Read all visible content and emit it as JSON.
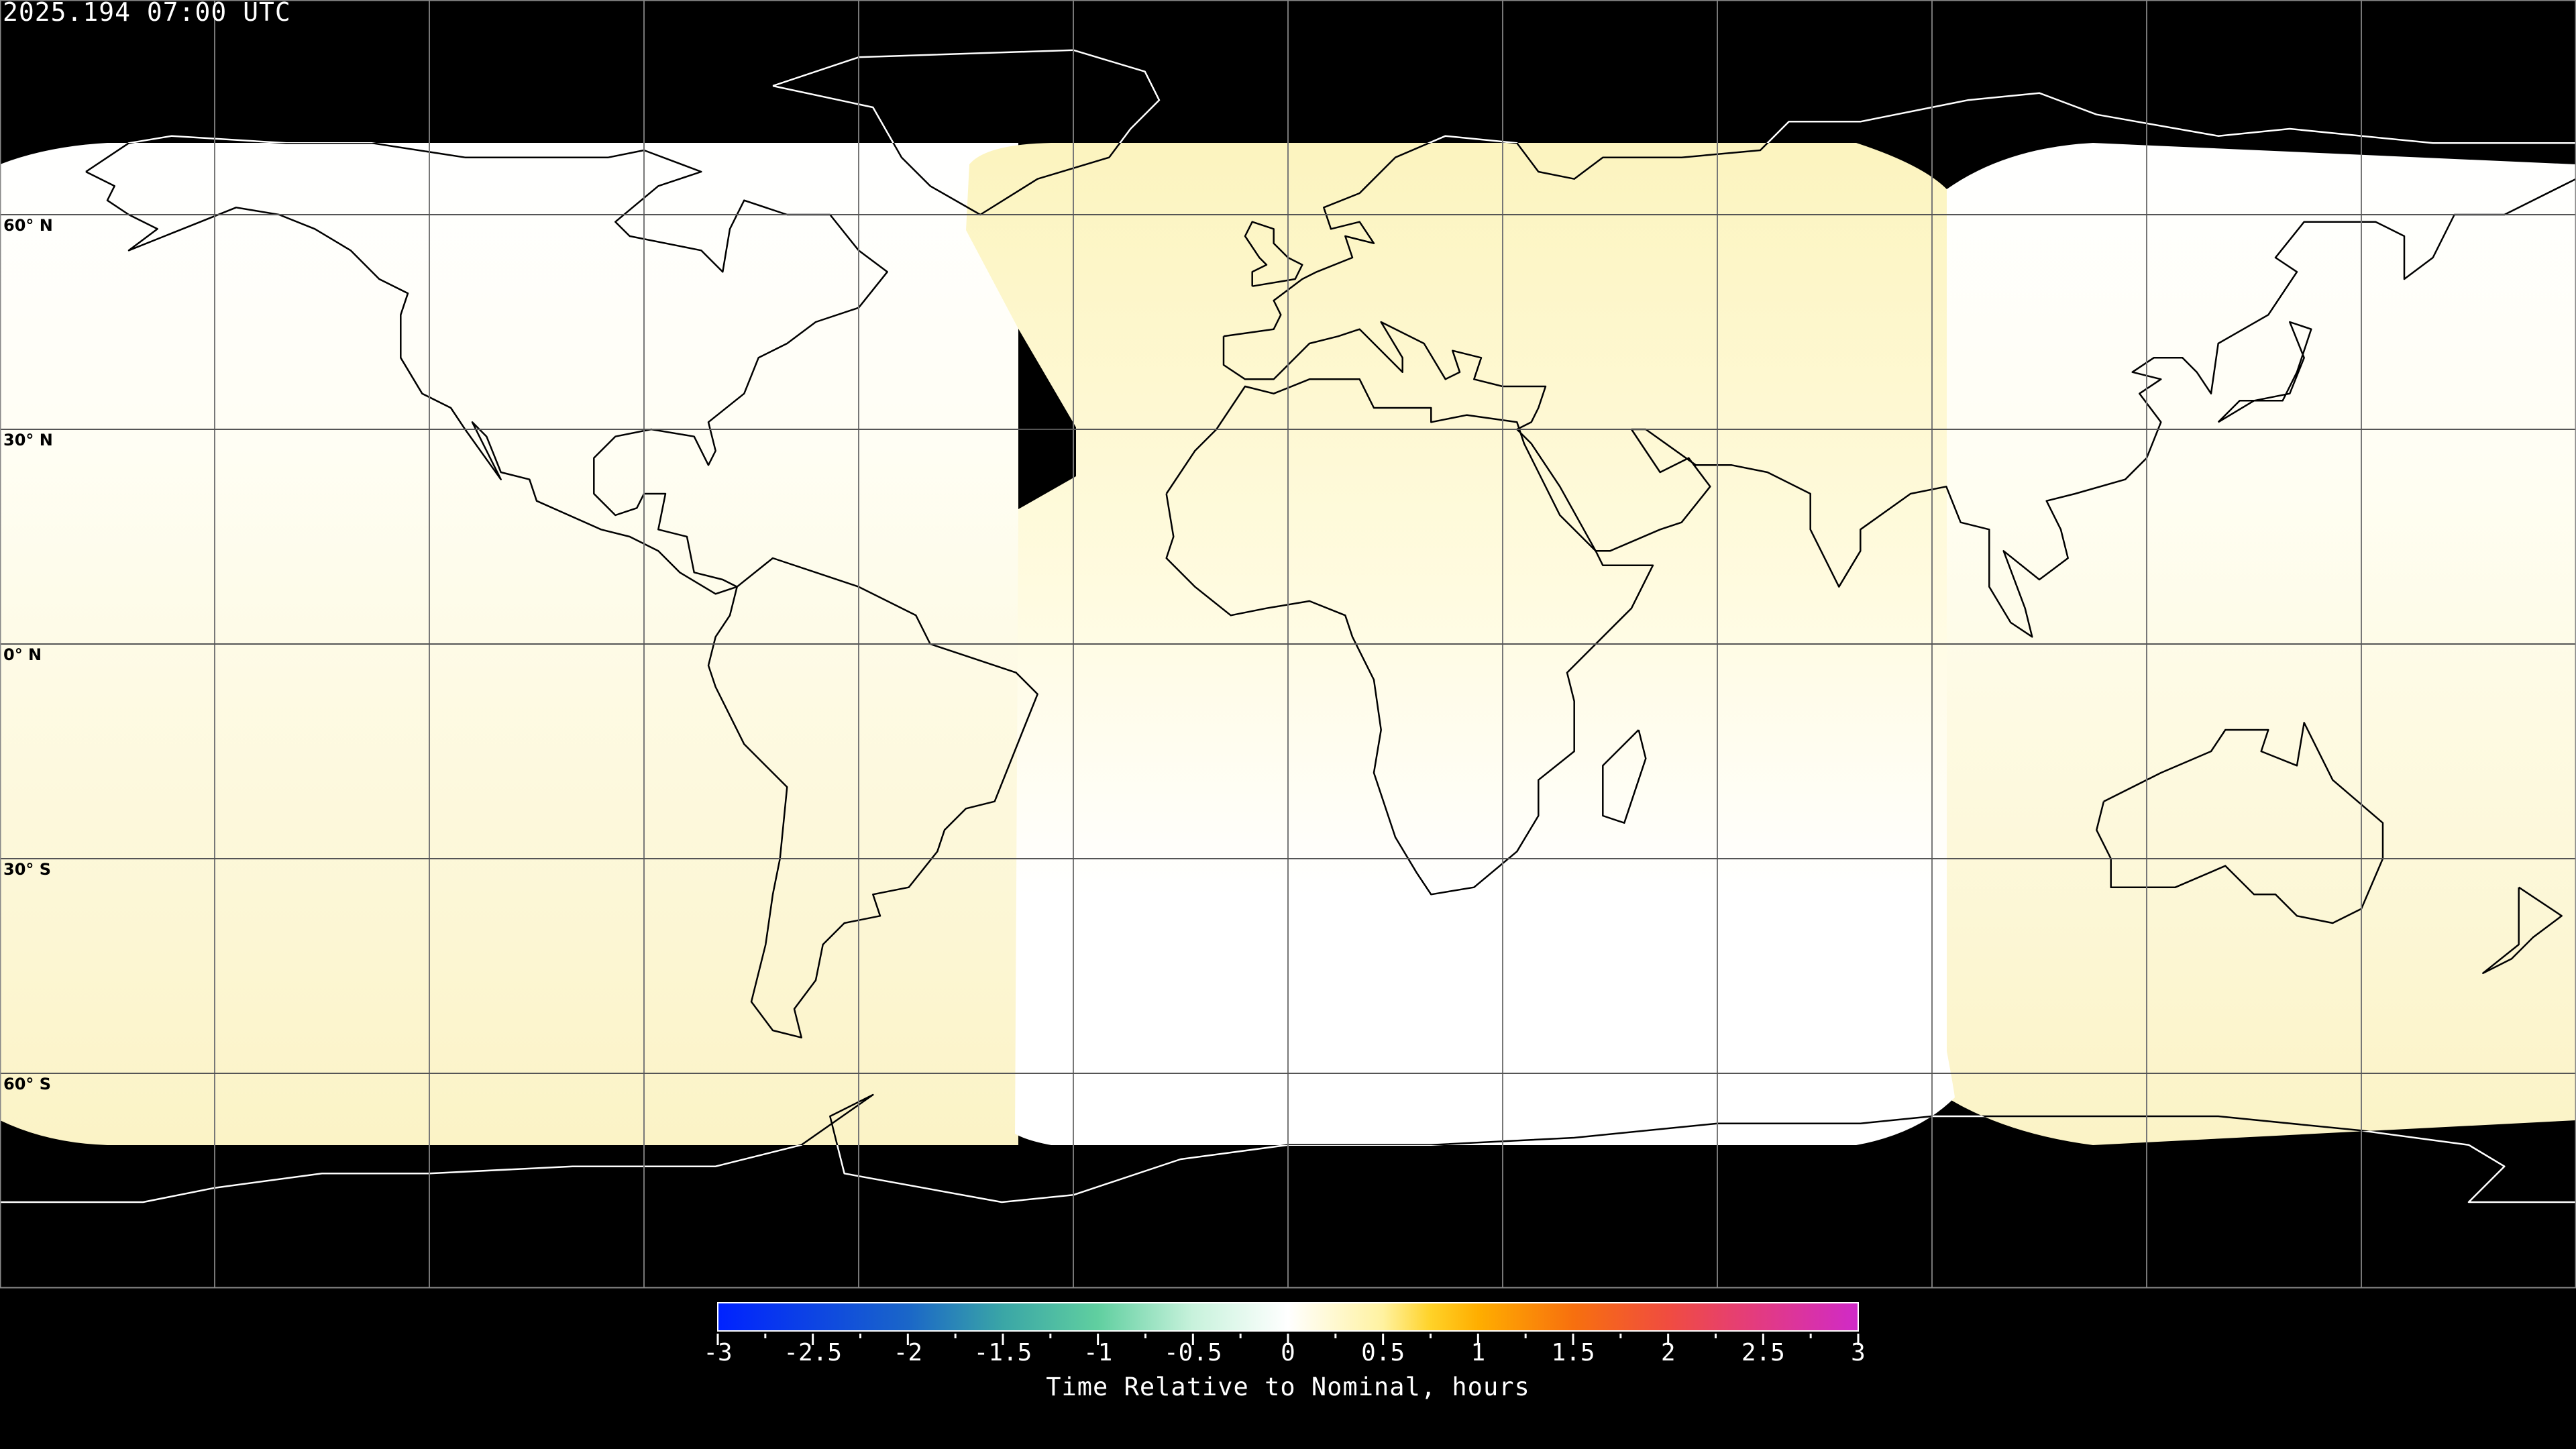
{
  "title": "2025.194 07:00 UTC",
  "map": {
    "projection": "equirectangular",
    "background_color": "#000000",
    "coastline_color_on_data": "#000000",
    "coastline_color_on_background": "#ffffff",
    "gridline_spacing_degrees": 30,
    "lat_labels": [
      "60° N",
      "30° N",
      "0° N",
      "30° S",
      "60° S"
    ]
  },
  "colorbar": {
    "title": "Time Relative to Nominal, hours",
    "range": [
      -3,
      3
    ],
    "tick_labels": [
      "-3",
      "-2.5",
      "-2",
      "-1.5",
      "-1",
      "-0.5",
      "0",
      "0.5",
      "1",
      "1.5",
      "2",
      "2.5",
      "3"
    ],
    "colors": {
      "-3": "#0022ff",
      "-2": "#1a66c8",
      "-1.5": "#3aa6a6",
      "-1": "#60cfa0",
      "-0.5": "#c8f2dc",
      "0": "#ffffff",
      "0.5": "#fff2a0",
      "0.75": "#ffd228",
      "1": "#ffae00",
      "1.5": "#f7700e",
      "2": "#f04c40",
      "2.5": "#e23a84",
      "3": "#d02ac8"
    }
  },
  "regions": [
    {
      "name": "west",
      "values_hours_range": [
        0.0,
        0.25
      ],
      "color_top": "#ffffff",
      "color_bottom": "#fbf3c6"
    },
    {
      "name": "central",
      "values_hours_range": [
        0.0,
        0.25
      ],
      "color_top": "#fcf4bf",
      "color_bottom": "#ffffff"
    },
    {
      "name": "east",
      "values_hours_range": [
        0.0,
        0.25
      ],
      "color_top": "#ffffff",
      "color_bottom": "#fbf3c6"
    }
  ]
}
